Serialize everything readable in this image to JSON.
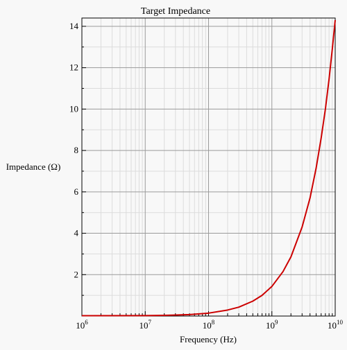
{
  "chart_data": {
    "type": "line",
    "title": "Target Impedance",
    "xlabel": "Frequency (Hz)",
    "ylabel": "Impedance (Ω)",
    "x_scale": "log",
    "xlim": [
      1000000,
      10000000000
    ],
    "ylim": [
      0,
      14.4
    ],
    "x_ticks": [
      {
        "value": 1000000,
        "base": "10",
        "exp": "6"
      },
      {
        "value": 10000000,
        "base": "10",
        "exp": "7"
      },
      {
        "value": 100000000,
        "base": "10",
        "exp": "8"
      },
      {
        "value": 1000000000,
        "base": "10",
        "exp": "9"
      },
      {
        "value": 10000000000,
        "base": "10",
        "exp": "10"
      }
    ],
    "y_ticks": [
      2,
      4,
      6,
      8,
      10,
      12,
      14
    ],
    "grid": true,
    "colors": {
      "background": "#f8f8f8",
      "grid_major": "#9a9a9a",
      "grid_minor": "#dcdcdc",
      "line": "#cc0000"
    },
    "series": [
      {
        "x": [
          1000000,
          10000000,
          20000000,
          50000000,
          100000000,
          200000000,
          300000000,
          500000000,
          700000000,
          1000000000,
          1500000000,
          2000000000,
          3000000000,
          4000000000,
          5000000000,
          6000000000,
          7000000000,
          8000000000,
          9000000000,
          10000000000
        ],
        "values": [
          0.015,
          0.022,
          0.032,
          0.07,
          0.14,
          0.29,
          0.43,
          0.72,
          1.0,
          1.43,
          2.15,
          2.86,
          4.3,
          5.7,
          7.15,
          8.6,
          10.0,
          11.45,
          12.9,
          14.3
        ]
      }
    ]
  }
}
